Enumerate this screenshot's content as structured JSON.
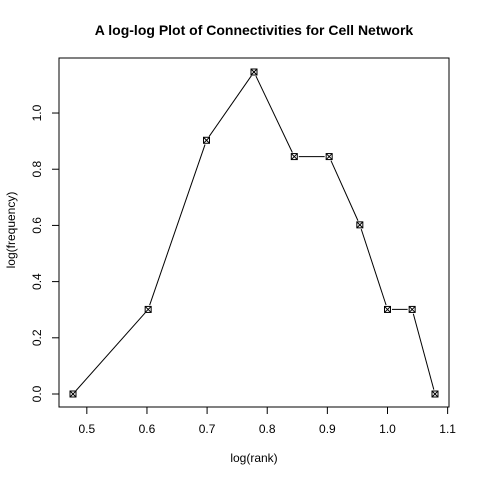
{
  "chart_data": {
    "type": "line",
    "title": "A log-log Plot of Connectivities for Cell Network",
    "xlabel": "log(rank)",
    "ylabel": "log(frequency)",
    "xlim": [
      0.477,
      1.079
    ],
    "ylim": [
      0.0,
      1.146
    ],
    "x_ticks": [
      0.5,
      0.6,
      0.7,
      0.8,
      0.9,
      1.0,
      1.1
    ],
    "x_tick_labels": [
      "0.5",
      "0.6",
      "0.7",
      "0.8",
      "0.9",
      "1.0",
      "1.1"
    ],
    "y_ticks": [
      0.0,
      0.2,
      0.4,
      0.6,
      0.8,
      1.0
    ],
    "y_tick_labels": [
      "0.0",
      "0.2",
      "0.4",
      "0.6",
      "0.8",
      "1.0"
    ],
    "grid": false,
    "marker": "boxed-x",
    "series": [
      {
        "x": [
          0.477,
          0.602,
          0.699,
          0.778,
          0.845,
          0.903,
          0.954,
          1.0,
          1.041,
          1.079
        ],
        "y": [
          0.0,
          0.301,
          0.903,
          1.146,
          0.845,
          0.845,
          0.602,
          0.301,
          0.301,
          0.0
        ]
      }
    ]
  }
}
